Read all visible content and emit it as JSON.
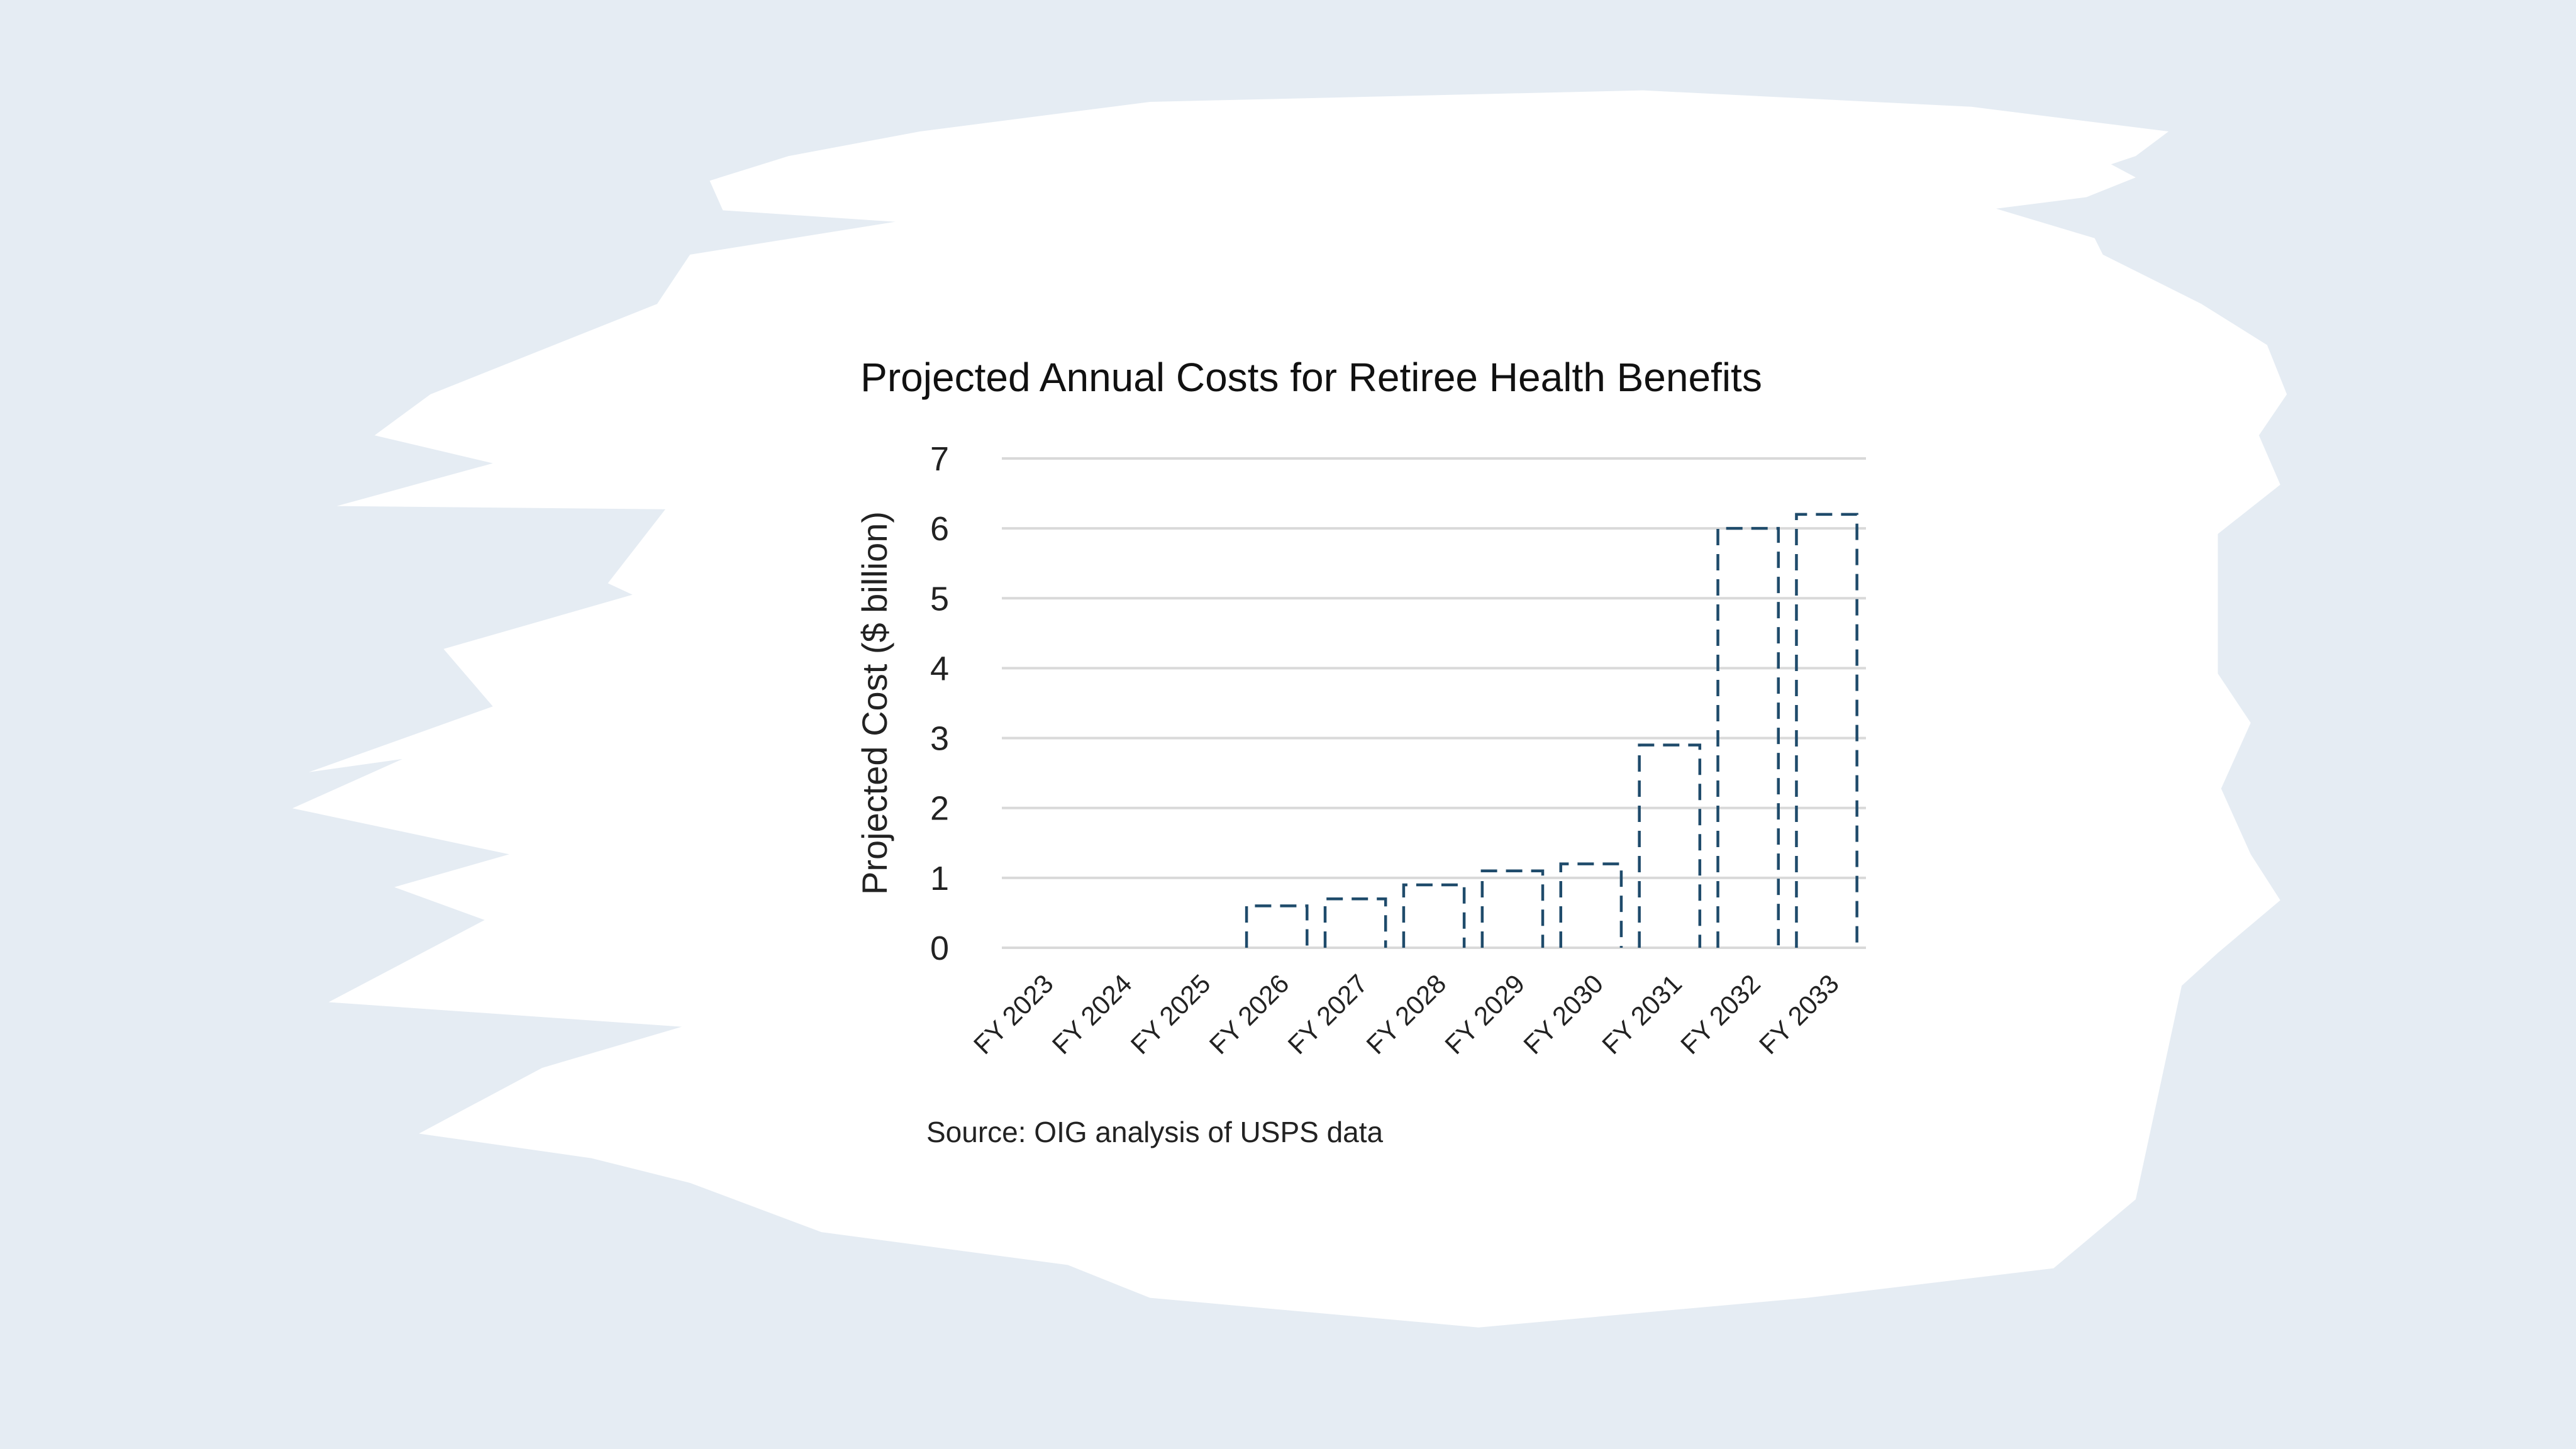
{
  "background_color": "#e5ecf3",
  "chart_data": {
    "type": "bar",
    "title": "Projected Annual Costs for Retiree Health Benefits",
    "xlabel": "",
    "ylabel": "Projected Cost ($ billion)",
    "ylim": [
      0,
      7
    ],
    "yticks": [
      0,
      1,
      2,
      3,
      4,
      5,
      6,
      7
    ],
    "grid": true,
    "categories": [
      "FY 2023",
      "FY 2024",
      "FY 2025",
      "FY 2026",
      "FY 2027",
      "FY 2028",
      "FY 2029",
      "FY 2030",
      "FY 2031",
      "FY 2032",
      "FY 2033"
    ],
    "values": [
      0,
      0,
      0,
      0.6,
      0.7,
      0.9,
      1.1,
      1.2,
      2.9,
      6.0,
      6.2
    ],
    "bar_style": "dashed outline",
    "bar_color": "#1f4b6b",
    "grid_color": "#d9d9d9",
    "source": "Source: OIG analysis of USPS data"
  }
}
